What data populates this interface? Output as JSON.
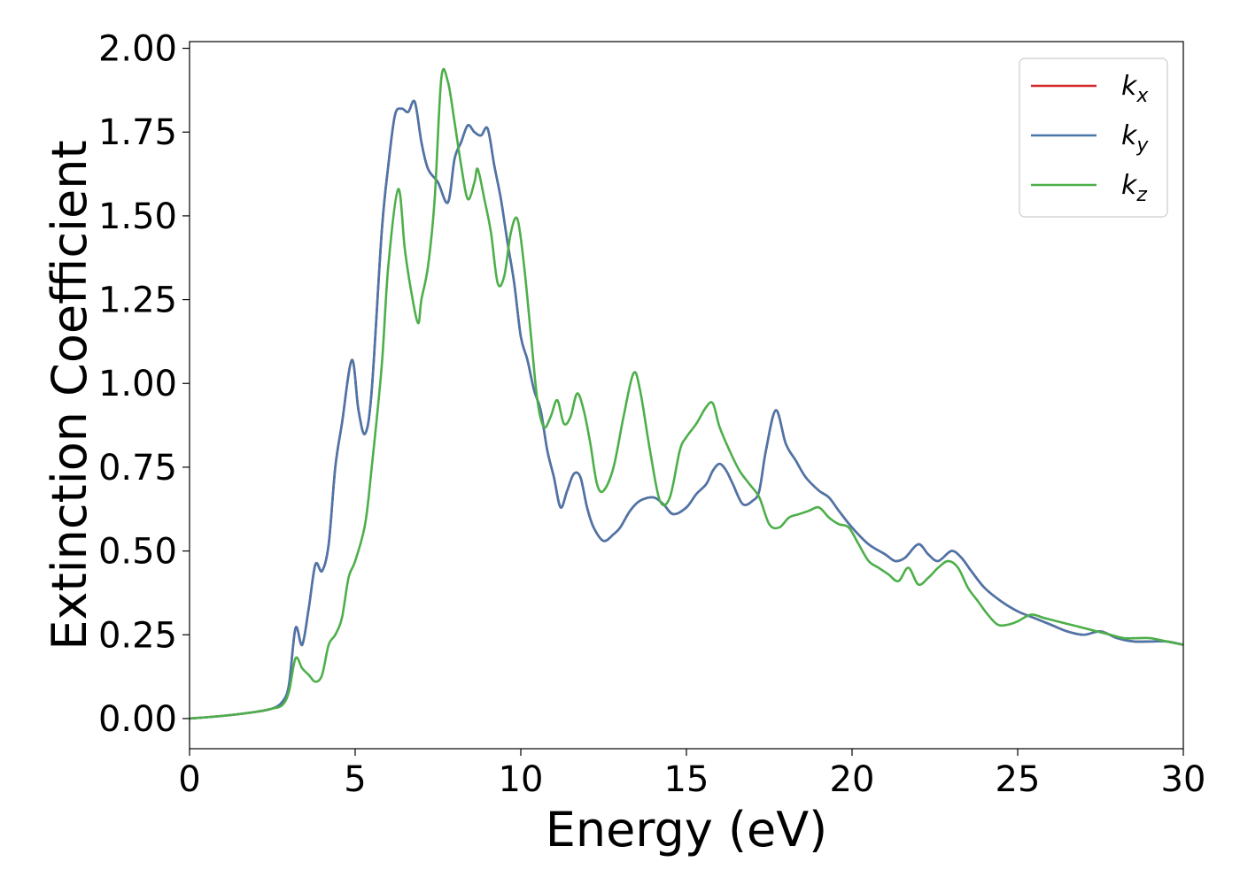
{
  "chart_data": {
    "type": "line",
    "title": "",
    "xlabel": "Energy (eV)",
    "ylabel": "Extinction Coefficient",
    "xlim": [
      0,
      30
    ],
    "ylim": [
      -0.09,
      2.02
    ],
    "xticks": [
      0,
      5,
      10,
      15,
      20,
      25,
      30
    ],
    "xtick_labels": [
      "0",
      "5",
      "10",
      "15",
      "20",
      "25",
      "30"
    ],
    "yticks": [
      0,
      0.25,
      0.5,
      0.75,
      1.0,
      1.25,
      1.5,
      1.75,
      2.0
    ],
    "ytick_labels": [
      "0.00",
      "0.25",
      "0.50",
      "0.75",
      "1.00",
      "1.25",
      "1.50",
      "1.75",
      "2.00"
    ],
    "grid": false,
    "legend_position": "top-right",
    "series": [
      {
        "name": "k",
        "subscript": "x",
        "color": "#d62728",
        "x": [
          0,
          1,
          2,
          2.5,
          2.8,
          3.0,
          3.2,
          3.4,
          3.6,
          3.8,
          4.0,
          4.2,
          4.4,
          4.6,
          4.9,
          5.1,
          5.3,
          5.5,
          5.8,
          6.0,
          6.2,
          6.4,
          6.6,
          6.8,
          7.0,
          7.2,
          7.5,
          7.8,
          8.0,
          8.2,
          8.4,
          8.6,
          8.8,
          9.0,
          9.2,
          9.4,
          9.6,
          9.8,
          10.0,
          10.2,
          10.4,
          10.6,
          10.8,
          11.0,
          11.2,
          11.4,
          11.6,
          11.8,
          12.0,
          12.2,
          12.5,
          12.8,
          13.0,
          13.3,
          13.6,
          14.0,
          14.3,
          14.6,
          15.0,
          15.3,
          15.6,
          15.8,
          16.0,
          16.2,
          16.4,
          16.7,
          17.0,
          17.2,
          17.4,
          17.7,
          18.0,
          18.3,
          18.6,
          19.0,
          19.3,
          19.6,
          20.0,
          20.5,
          21.0,
          21.3,
          21.6,
          22.0,
          22.3,
          22.6,
          23.0,
          23.3,
          23.6,
          24.0,
          24.5,
          25.0,
          25.5,
          26.0,
          26.5,
          27.0,
          27.5,
          28.0,
          28.5,
          29.0,
          29.5,
          30.0
        ],
        "y": [
          0.0,
          0.008,
          0.02,
          0.03,
          0.05,
          0.1,
          0.27,
          0.22,
          0.33,
          0.46,
          0.44,
          0.52,
          0.75,
          0.88,
          1.07,
          0.92,
          0.85,
          0.98,
          1.45,
          1.65,
          1.8,
          1.82,
          1.81,
          1.84,
          1.72,
          1.64,
          1.6,
          1.54,
          1.67,
          1.72,
          1.77,
          1.75,
          1.74,
          1.76,
          1.65,
          1.55,
          1.42,
          1.3,
          1.14,
          1.07,
          0.98,
          0.92,
          0.8,
          0.72,
          0.63,
          0.68,
          0.73,
          0.72,
          0.63,
          0.57,
          0.53,
          0.55,
          0.57,
          0.62,
          0.65,
          0.66,
          0.64,
          0.61,
          0.63,
          0.67,
          0.7,
          0.74,
          0.76,
          0.74,
          0.7,
          0.64,
          0.65,
          0.68,
          0.8,
          0.92,
          0.82,
          0.77,
          0.72,
          0.68,
          0.66,
          0.62,
          0.57,
          0.52,
          0.49,
          0.47,
          0.48,
          0.52,
          0.49,
          0.47,
          0.5,
          0.48,
          0.44,
          0.39,
          0.35,
          0.32,
          0.3,
          0.28,
          0.26,
          0.25,
          0.26,
          0.24,
          0.23,
          0.23,
          0.23,
          0.22
        ]
      },
      {
        "name": "k",
        "subscript": "y",
        "color": "#4a76aa",
        "x": [
          0,
          1,
          2,
          2.5,
          2.8,
          3.0,
          3.2,
          3.4,
          3.6,
          3.8,
          4.0,
          4.2,
          4.4,
          4.6,
          4.9,
          5.1,
          5.3,
          5.5,
          5.8,
          6.0,
          6.2,
          6.4,
          6.6,
          6.8,
          7.0,
          7.2,
          7.5,
          7.8,
          8.0,
          8.2,
          8.4,
          8.6,
          8.8,
          9.0,
          9.2,
          9.4,
          9.6,
          9.8,
          10.0,
          10.2,
          10.4,
          10.6,
          10.8,
          11.0,
          11.2,
          11.4,
          11.6,
          11.8,
          12.0,
          12.2,
          12.5,
          12.8,
          13.0,
          13.3,
          13.6,
          14.0,
          14.3,
          14.6,
          15.0,
          15.3,
          15.6,
          15.8,
          16.0,
          16.2,
          16.4,
          16.7,
          17.0,
          17.2,
          17.4,
          17.7,
          18.0,
          18.3,
          18.6,
          19.0,
          19.3,
          19.6,
          20.0,
          20.5,
          21.0,
          21.3,
          21.6,
          22.0,
          22.3,
          22.6,
          23.0,
          23.3,
          23.6,
          24.0,
          24.5,
          25.0,
          25.5,
          26.0,
          26.5,
          27.0,
          27.5,
          28.0,
          28.5,
          29.0,
          29.5,
          30.0
        ],
        "y": [
          0.0,
          0.008,
          0.02,
          0.03,
          0.05,
          0.1,
          0.27,
          0.22,
          0.33,
          0.46,
          0.44,
          0.52,
          0.75,
          0.88,
          1.07,
          0.92,
          0.85,
          0.98,
          1.45,
          1.65,
          1.8,
          1.82,
          1.81,
          1.84,
          1.72,
          1.64,
          1.6,
          1.54,
          1.67,
          1.72,
          1.77,
          1.75,
          1.74,
          1.76,
          1.65,
          1.55,
          1.42,
          1.3,
          1.14,
          1.07,
          0.98,
          0.92,
          0.8,
          0.72,
          0.63,
          0.68,
          0.73,
          0.72,
          0.63,
          0.57,
          0.53,
          0.55,
          0.57,
          0.62,
          0.65,
          0.66,
          0.64,
          0.61,
          0.63,
          0.67,
          0.7,
          0.74,
          0.76,
          0.74,
          0.7,
          0.64,
          0.65,
          0.68,
          0.8,
          0.92,
          0.82,
          0.77,
          0.72,
          0.68,
          0.66,
          0.62,
          0.57,
          0.52,
          0.49,
          0.47,
          0.48,
          0.52,
          0.49,
          0.47,
          0.5,
          0.48,
          0.44,
          0.39,
          0.35,
          0.32,
          0.3,
          0.28,
          0.26,
          0.25,
          0.26,
          0.24,
          0.23,
          0.23,
          0.23,
          0.22
        ]
      },
      {
        "name": "k",
        "subscript": "z",
        "color": "#4daf4a",
        "x": [
          0,
          1,
          2,
          2.5,
          2.8,
          3.0,
          3.2,
          3.4,
          3.6,
          3.8,
          4.0,
          4.2,
          4.4,
          4.6,
          4.8,
          5.0,
          5.3,
          5.5,
          5.8,
          6.0,
          6.3,
          6.5,
          6.7,
          6.9,
          7.0,
          7.2,
          7.4,
          7.6,
          7.8,
          8.0,
          8.2,
          8.4,
          8.6,
          8.7,
          8.9,
          9.1,
          9.3,
          9.5,
          9.7,
          9.9,
          10.1,
          10.3,
          10.5,
          10.7,
          10.9,
          11.1,
          11.3,
          11.5,
          11.7,
          11.9,
          12.1,
          12.3,
          12.5,
          12.8,
          13.1,
          13.4,
          13.6,
          13.9,
          14.2,
          14.5,
          14.8,
          15.0,
          15.3,
          15.6,
          15.8,
          16.0,
          16.3,
          16.6,
          16.9,
          17.2,
          17.5,
          17.8,
          18.1,
          18.4,
          18.7,
          19.0,
          19.3,
          19.6,
          19.9,
          20.2,
          20.5,
          20.8,
          21.1,
          21.4,
          21.7,
          22.0,
          22.3,
          22.6,
          22.9,
          23.2,
          23.5,
          23.8,
          24.1,
          24.4,
          24.7,
          25.0,
          25.4,
          25.8,
          26.2,
          26.6,
          27.0,
          27.4,
          27.8,
          28.2,
          28.6,
          29.0,
          29.5,
          30.0
        ],
        "y": [
          0.0,
          0.008,
          0.02,
          0.03,
          0.04,
          0.08,
          0.18,
          0.15,
          0.13,
          0.11,
          0.13,
          0.22,
          0.25,
          0.3,
          0.42,
          0.47,
          0.58,
          0.75,
          1.05,
          1.35,
          1.58,
          1.4,
          1.27,
          1.18,
          1.25,
          1.35,
          1.55,
          1.91,
          1.9,
          1.78,
          1.65,
          1.55,
          1.6,
          1.64,
          1.55,
          1.45,
          1.3,
          1.32,
          1.45,
          1.49,
          1.35,
          1.15,
          0.95,
          0.87,
          0.9,
          0.95,
          0.88,
          0.9,
          0.97,
          0.92,
          0.82,
          0.7,
          0.68,
          0.75,
          0.9,
          1.03,
          0.98,
          0.8,
          0.65,
          0.66,
          0.8,
          0.84,
          0.88,
          0.93,
          0.94,
          0.87,
          0.8,
          0.74,
          0.7,
          0.66,
          0.58,
          0.57,
          0.6,
          0.61,
          0.62,
          0.63,
          0.6,
          0.58,
          0.57,
          0.52,
          0.47,
          0.45,
          0.43,
          0.41,
          0.45,
          0.4,
          0.42,
          0.45,
          0.47,
          0.45,
          0.39,
          0.35,
          0.31,
          0.28,
          0.28,
          0.29,
          0.31,
          0.3,
          0.29,
          0.28,
          0.27,
          0.26,
          0.25,
          0.24,
          0.24,
          0.24,
          0.23,
          0.22
        ]
      }
    ]
  }
}
